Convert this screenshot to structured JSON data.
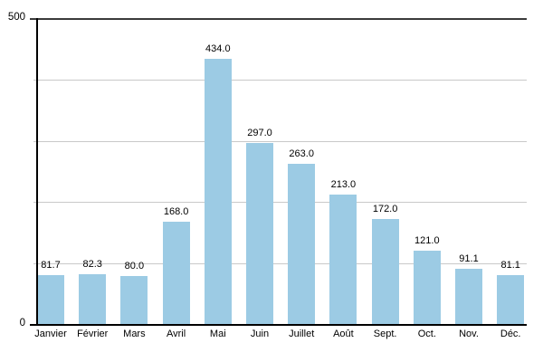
{
  "chart_data": {
    "type": "bar",
    "categories": [
      "Janvier",
      "Février",
      "Mars",
      "Avril",
      "Mai",
      "Juin",
      "Juillet",
      "Août",
      "Sept.",
      "Oct.",
      "Nov.",
      "Déc."
    ],
    "values": [
      81.7,
      82.3,
      80.0,
      168.0,
      434.0,
      297.0,
      263.0,
      213.0,
      172.0,
      121.0,
      91.1,
      81.1
    ],
    "value_labels": [
      "81.7",
      "82.3",
      "80.0",
      "168.0",
      "434.0",
      "297.0",
      "263.0",
      "213.0",
      "172.0",
      "121.0",
      "91.1",
      "81.1"
    ],
    "title": "",
    "xlabel": "",
    "ylabel": "",
    "ylim": [
      0,
      500
    ],
    "gridline_interval": 100,
    "grid": true,
    "legend": false,
    "bar_color": "#9CCBE4",
    "gridline_color": "#c9c9c9",
    "axis_color": "#000000",
    "top_line_color": "#3a3a3a"
  },
  "y_axis": {
    "top_label": "500",
    "bottom_label": "0"
  }
}
